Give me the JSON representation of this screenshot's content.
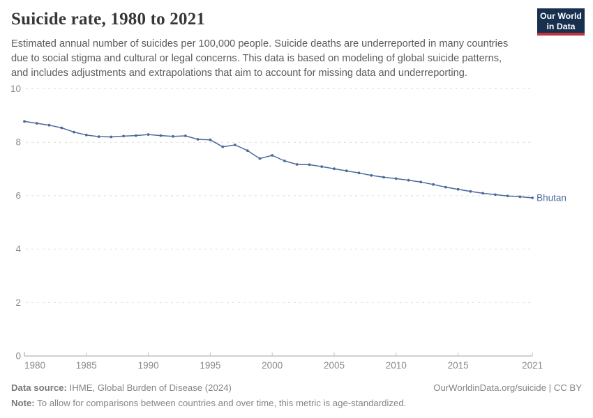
{
  "header": {
    "title": "Suicide rate, 1980 to 2021",
    "subtitle_lines": [
      "Estimated annual number of suicides per 100,000 people. Suicide deaths are underreported in many countries",
      "due to social stigma and cultural or legal concerns. This data is based on modeling of global suicide patterns,",
      "and includes adjustments and extrapolations that aim to account for missing data and underreporting."
    ],
    "logo": {
      "line1": "Our World",
      "line2": "in Data"
    }
  },
  "chart_data": {
    "type": "line",
    "title": "Suicide rate, 1980 to 2021",
    "xlabel": "",
    "ylabel": "",
    "ylim": [
      0,
      10
    ],
    "yticks": [
      0,
      2,
      4,
      6,
      8,
      10
    ],
    "xticks": [
      1980,
      1985,
      1990,
      1995,
      2000,
      2005,
      2010,
      2015,
      2021
    ],
    "grid": true,
    "legend_position": "end-of-line",
    "series": [
      {
        "name": "Bhutan",
        "color": "#4c6a9c",
        "x": [
          1980,
          1981,
          1982,
          1983,
          1984,
          1985,
          1986,
          1987,
          1988,
          1989,
          1990,
          1991,
          1992,
          1993,
          1994,
          1995,
          1996,
          1997,
          1998,
          1999,
          2000,
          2001,
          2002,
          2003,
          2004,
          2005,
          2006,
          2007,
          2008,
          2009,
          2010,
          2011,
          2012,
          2013,
          2014,
          2015,
          2016,
          2017,
          2018,
          2019,
          2020,
          2021
        ],
        "values": [
          8.78,
          8.71,
          8.64,
          8.54,
          8.38,
          8.27,
          8.21,
          8.2,
          8.23,
          8.25,
          8.29,
          8.25,
          8.22,
          8.24,
          8.11,
          8.09,
          7.83,
          7.9,
          7.69,
          7.39,
          7.51,
          7.3,
          7.17,
          7.16,
          7.09,
          7.01,
          6.93,
          6.85,
          6.76,
          6.69,
          6.64,
          6.58,
          6.51,
          6.42,
          6.32,
          6.24,
          6.16,
          6.09,
          6.04,
          5.99,
          5.96,
          5.92
        ]
      }
    ]
  },
  "footer": {
    "datasource_label": "Data source:",
    "datasource_value": " IHME, Global Burden of Disease (2024)",
    "cc_text": "OurWorldinData.org/suicide | CC BY",
    "note_label": "Note:",
    "note_value": " To allow for comparisons between countries and over time, this metric is age-standardized."
  },
  "colors": {
    "line": "#4c6a9c",
    "entity_label": "#4c6a9c",
    "grid": "#dadada",
    "axis": "#a3a3a3",
    "tick": "#c2c2c2",
    "tick_label": "#8a8a8a",
    "title": "#383636",
    "subtitle": "#5b5b5b",
    "footer_text": "#858585",
    "logo_bg": "#18304f",
    "logo_stripe": "#c0353c"
  }
}
